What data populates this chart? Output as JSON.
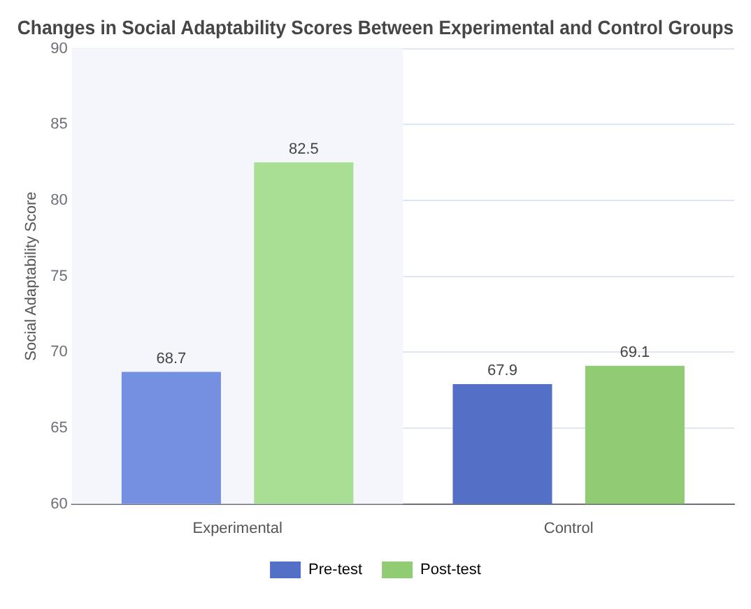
{
  "chart_data": {
    "type": "bar",
    "title": "Changes in Social Adaptability Scores Between Experimental and Control Groups",
    "ylabel": "Social Adaptability Score",
    "categories": [
      "Experimental",
      "Control"
    ],
    "series": [
      {
        "name": "Pre-test",
        "color": "#5470c6",
        "colors": [
          "#7590e0",
          "#5470c6"
        ],
        "values": [
          68.7,
          67.9
        ]
      },
      {
        "name": "Post-test",
        "color": "#91cc75",
        "colors": [
          "#a8df94",
          "#91cc75"
        ],
        "values": [
          82.5,
          69.1
        ]
      }
    ],
    "ylim": [
      60,
      90
    ],
    "yticks": [
      60,
      65,
      70,
      75,
      80,
      85,
      90
    ],
    "grid": "y",
    "legend": "bottom",
    "data_labels": true,
    "bands": [
      {
        "axis": "x",
        "from": "Experimental",
        "to": "Experimental",
        "color": "#f4f6fb"
      }
    ]
  }
}
